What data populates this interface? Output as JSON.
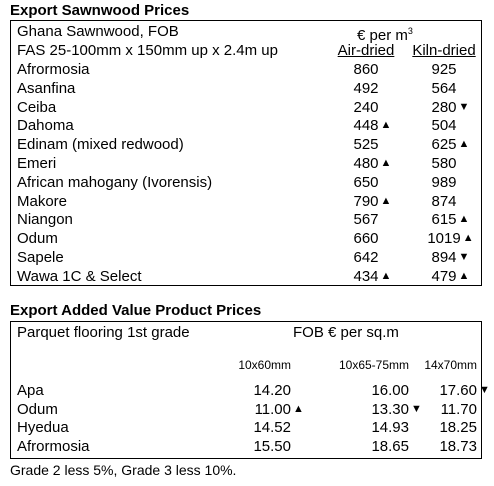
{
  "sawn": {
    "title": "Export Sawnwood Prices",
    "header1": "Ghana Sawnwood, FOB",
    "unit": "€ per m",
    "unit_sup": "3",
    "header2": "FAS 25-100mm x 150mm up x 2.4m up",
    "col1": "Air-dried",
    "col2": "Kiln-dried",
    "rows": [
      {
        "name": "Afrormosia",
        "air": "860",
        "air_arrow": "",
        "kiln": "925",
        "kiln_arrow": ""
      },
      {
        "name": "Asanfina",
        "air": "492",
        "air_arrow": "",
        "kiln": "564",
        "kiln_arrow": ""
      },
      {
        "name": "Ceiba",
        "air": "240",
        "air_arrow": "",
        "kiln": "280",
        "kiln_arrow": "down"
      },
      {
        "name": "Dahoma",
        "air": "448",
        "air_arrow": "up",
        "kiln": "504",
        "kiln_arrow": ""
      },
      {
        "name": "Edinam (mixed redwood)",
        "air": "525",
        "air_arrow": "",
        "kiln": "625",
        "kiln_arrow": "up"
      },
      {
        "name": "Emeri",
        "air": "480",
        "air_arrow": "up",
        "kiln": "580",
        "kiln_arrow": ""
      },
      {
        "name": "African mahogany (Ivorensis)",
        "air": "650",
        "air_arrow": "",
        "kiln": "989",
        "kiln_arrow": ""
      },
      {
        "name": "Makore",
        "air": "790",
        "air_arrow": "up",
        "kiln": "874",
        "kiln_arrow": ""
      },
      {
        "name": "Niangon",
        "air": "567",
        "air_arrow": "",
        "kiln": "615",
        "kiln_arrow": "up"
      },
      {
        "name": "Odum",
        "air": "660",
        "air_arrow": "",
        "kiln": "1019",
        "kiln_arrow": "up"
      },
      {
        "name": "Sapele",
        "air": "642",
        "air_arrow": "",
        "kiln": "894",
        "kiln_arrow": "down"
      },
      {
        "name": "Wawa 1C & Select",
        "air": "434",
        "air_arrow": "up",
        "kiln": "479",
        "kiln_arrow": "up"
      }
    ]
  },
  "added": {
    "title": "Export Added Value Product Prices",
    "header1": "Parquet flooring 1st grade",
    "unit": "FOB € per sq.m",
    "cols": [
      "10x60mm",
      "10x65-75mm",
      "14x70mm"
    ],
    "rows": [
      {
        "name": "Apa",
        "v": [
          "14.20",
          "16.00",
          "17.60"
        ],
        "a": [
          "",
          "",
          "down"
        ]
      },
      {
        "name": "Odum",
        "v": [
          "11.00",
          "13.30",
          "11.70"
        ],
        "a": [
          "up",
          "down",
          ""
        ]
      },
      {
        "name": "Hyedua",
        "v": [
          "14.52",
          "14.93",
          "18.25"
        ],
        "a": [
          "",
          "",
          ""
        ]
      },
      {
        "name": "Afrormosia",
        "v": [
          "15.50",
          "18.65",
          "18.73"
        ],
        "a": [
          "",
          "",
          ""
        ]
      }
    ],
    "note": "Grade 2 less 5%, Grade 3 less 10%."
  }
}
